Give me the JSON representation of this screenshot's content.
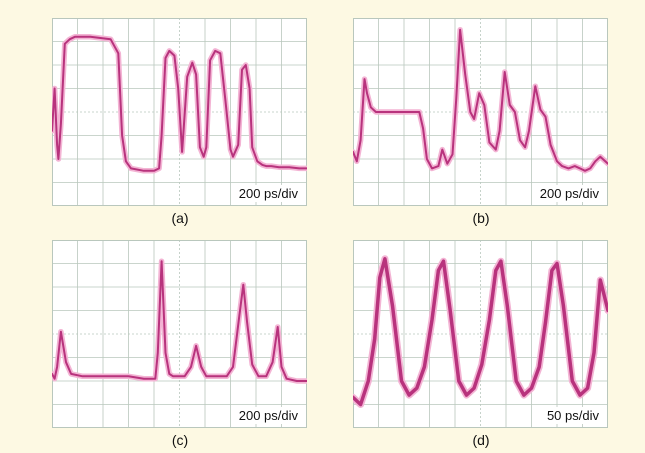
{
  "colors": {
    "background": "#fdf9e3",
    "grid": "#b9c7bd",
    "trace": "#b8337d",
    "trace_glow": "#f3b4d4"
  },
  "chart_data": [
    {
      "type": "line",
      "caption": "(a)",
      "scale_label": "200 ps/div",
      "grid": true,
      "x_divisions": 10,
      "y_divisions": 8,
      "xlim": [
        0,
        10
      ],
      "ylim": [
        0,
        8
      ],
      "x": [
        0,
        0.1,
        0.2,
        0.25,
        0.35,
        0.5,
        0.7,
        0.9,
        1.5,
        2.3,
        2.6,
        2.75,
        2.9,
        3.1,
        3.6,
        4.0,
        4.2,
        4.3,
        4.45,
        4.6,
        4.8,
        4.95,
        5.1,
        5.3,
        5.5,
        5.65,
        5.8,
        5.95,
        6.05,
        6.2,
        6.4,
        6.6,
        6.8,
        7.0,
        7.1,
        7.3,
        7.45,
        7.6,
        7.75,
        7.85,
        8.05,
        8.25,
        8.4,
        8.6,
        8.9,
        9.3,
        9.7,
        10.0
      ],
      "values": [
        3.2,
        5.0,
        2.6,
        2.0,
        3.5,
        6.9,
        7.1,
        7.2,
        7.2,
        7.1,
        6.5,
        3.0,
        1.9,
        1.6,
        1.5,
        1.5,
        1.6,
        3.0,
        6.3,
        6.6,
        6.4,
        5.0,
        2.3,
        5.5,
        6.1,
        5.6,
        2.5,
        2.1,
        2.5,
        6.2,
        6.6,
        6.5,
        4.5,
        2.4,
        2.1,
        2.6,
        5.8,
        6.0,
        5.0,
        2.5,
        1.9,
        1.75,
        1.7,
        1.7,
        1.65,
        1.65,
        1.6,
        1.6
      ]
    },
    {
      "type": "line",
      "caption": "(b)",
      "scale_label": "200 ps/div",
      "grid": true,
      "x_divisions": 10,
      "y_divisions": 8,
      "xlim": [
        0,
        10
      ],
      "ylim": [
        0,
        8
      ],
      "x": [
        0,
        0.15,
        0.3,
        0.45,
        0.55,
        0.7,
        0.9,
        1.3,
        2.0,
        2.6,
        2.75,
        2.9,
        3.1,
        3.35,
        3.5,
        3.7,
        3.9,
        4.05,
        4.2,
        4.4,
        4.6,
        4.75,
        4.95,
        5.15,
        5.35,
        5.6,
        5.75,
        5.95,
        6.15,
        6.35,
        6.55,
        6.75,
        6.9,
        7.15,
        7.35,
        7.55,
        7.75,
        8.0,
        8.2,
        8.45,
        8.7,
        8.9,
        9.1,
        9.3,
        9.5,
        9.7,
        10.0
      ],
      "values": [
        2.3,
        1.9,
        2.8,
        5.4,
        4.8,
        4.2,
        4.0,
        4.0,
        4.0,
        4.0,
        3.3,
        2.0,
        1.6,
        1.7,
        2.4,
        1.8,
        2.2,
        4.6,
        7.5,
        5.6,
        4.0,
        3.7,
        4.8,
        4.3,
        2.7,
        2.4,
        3.2,
        5.7,
        4.3,
        4.0,
        2.8,
        2.5,
        3.2,
        5.1,
        4.1,
        3.8,
        2.6,
        1.9,
        1.7,
        1.6,
        1.7,
        1.6,
        1.5,
        1.6,
        1.9,
        2.1,
        1.8
      ]
    },
    {
      "type": "line",
      "caption": "(c)",
      "scale_label": "200 ps/div",
      "grid": true,
      "x_divisions": 10,
      "y_divisions": 8,
      "xlim": [
        0,
        10
      ],
      "ylim": [
        0,
        8
      ],
      "x": [
        0,
        0.1,
        0.2,
        0.35,
        0.55,
        0.75,
        1.2,
        2.0,
        3.0,
        3.6,
        4.05,
        4.15,
        4.3,
        4.45,
        4.6,
        4.75,
        5.2,
        5.45,
        5.65,
        5.85,
        6.05,
        6.5,
        6.85,
        7.1,
        7.35,
        7.5,
        7.65,
        7.85,
        8.1,
        8.4,
        8.65,
        8.85,
        9.0,
        9.2,
        9.6,
        10.0
      ],
      "values": [
        2.3,
        2.1,
        2.6,
        4.1,
        2.8,
        2.3,
        2.2,
        2.2,
        2.2,
        2.1,
        2.1,
        3.2,
        7.1,
        3.2,
        2.3,
        2.2,
        2.2,
        2.6,
        3.5,
        2.6,
        2.2,
        2.2,
        2.2,
        2.6,
        4.8,
        6.1,
        4.5,
        2.7,
        2.2,
        2.2,
        2.8,
        4.3,
        2.6,
        2.1,
        2.0,
        2.0
      ]
    },
    {
      "type": "line",
      "caption": "(d)",
      "scale_label": "50 ps/div",
      "grid": true,
      "x_divisions": 10,
      "y_divisions": 8,
      "xlim": [
        0,
        10
      ],
      "ylim": [
        0,
        8
      ],
      "x": [
        0,
        0.3,
        0.6,
        0.85,
        1.05,
        1.25,
        1.55,
        1.9,
        2.2,
        2.5,
        2.8,
        3.1,
        3.35,
        3.55,
        3.8,
        4.15,
        4.45,
        4.75,
        5.05,
        5.35,
        5.6,
        5.8,
        6.05,
        6.4,
        6.7,
        7.0,
        7.3,
        7.55,
        7.8,
        8.0,
        8.25,
        8.6,
        8.9,
        9.2,
        9.45,
        9.7,
        10.0
      ],
      "values": [
        1.3,
        1.0,
        2.0,
        3.8,
        6.4,
        7.2,
        5.2,
        2.0,
        1.4,
        1.7,
        2.6,
        4.6,
        6.7,
        7.1,
        5.1,
        2.0,
        1.4,
        1.7,
        2.7,
        4.6,
        6.7,
        7.1,
        5.2,
        2.0,
        1.4,
        1.7,
        2.6,
        4.5,
        6.7,
        7.0,
        5.2,
        2.0,
        1.4,
        1.7,
        3.2,
        6.3,
        5.0
      ]
    }
  ]
}
